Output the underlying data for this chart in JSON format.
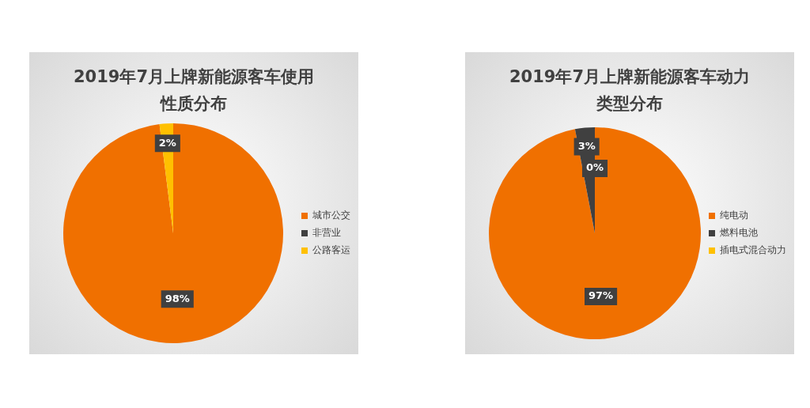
{
  "chart_data": [
    {
      "type": "pie",
      "title": "2019年7月上牌新能源客车使用性质分布",
      "categories": [
        "城市公交",
        "非营业",
        "公路客运"
      ],
      "values": [
        98,
        0,
        2
      ],
      "colors": [
        "#f07000",
        "#404040",
        "#ffc000"
      ],
      "value_labels": [
        "98%",
        null,
        "2%"
      ],
      "legend": "right"
    },
    {
      "type": "pie",
      "title": "2019年7月上牌新能源客车动力类型分布",
      "categories": [
        "纯电动",
        "燃料电池",
        "插电式混合动力"
      ],
      "values": [
        97,
        3,
        0
      ],
      "colors": [
        "#f07000",
        "#404040",
        "#ffc000"
      ],
      "value_labels": [
        "97%",
        "3%",
        "0%"
      ],
      "legend": "right"
    }
  ]
}
